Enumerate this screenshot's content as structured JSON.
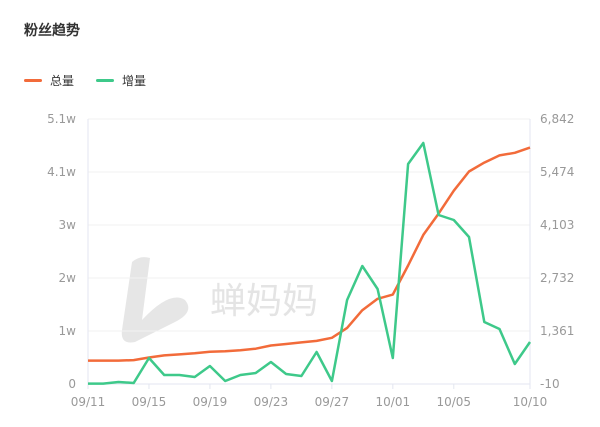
{
  "title": "粉丝趋势",
  "watermark": "蝉妈妈",
  "chart_data": {
    "type": "line",
    "title": "粉丝趋势",
    "categories": [
      "09/11",
      "09/12",
      "09/13",
      "09/14",
      "09/15",
      "09/16",
      "09/17",
      "09/18",
      "09/19",
      "09/20",
      "09/21",
      "09/22",
      "09/23",
      "09/24",
      "09/25",
      "09/26",
      "09/27",
      "09/28",
      "09/29",
      "09/30",
      "10/01",
      "10/02",
      "10/03",
      "10/04",
      "10/05",
      "10/06",
      "10/07",
      "10/08",
      "10/09",
      "10/10"
    ],
    "x_tick_labels": [
      "09/11",
      "09/15",
      "09/19",
      "09/23",
      "09/27",
      "10/01",
      "10/05",
      "10/10"
    ],
    "left_axis": {
      "ticks": [
        "0",
        "1w",
        "2w",
        "3w",
        "4.1w",
        "5.1w"
      ],
      "range": [
        0,
        51000
      ]
    },
    "right_axis": {
      "ticks": [
        "-10",
        "1,361",
        "2,732",
        "4,103",
        "5,474",
        "6,842"
      ],
      "range": [
        -10,
        6842
      ]
    },
    "grid": true,
    "legend_position": "top-left",
    "series": [
      {
        "name": "总量",
        "axis": "left",
        "color": "#f26b3a",
        "values": [
          4500,
          4500,
          4500,
          4600,
          5100,
          5500,
          5700,
          5900,
          6200,
          6300,
          6500,
          6800,
          7400,
          7700,
          8000,
          8300,
          8900,
          10800,
          14200,
          16400,
          17200,
          22800,
          28700,
          32800,
          37200,
          40900,
          42600,
          44000,
          44500,
          45500
        ]
      },
      {
        "name": "增量",
        "axis": "right",
        "color": "#3ec98a",
        "values": [
          0,
          0,
          42,
          16,
          662,
          223,
          223,
          171,
          455,
          68,
          223,
          275,
          559,
          249,
          197,
          818,
          68,
          2162,
          3041,
          2447,
          662,
          5679,
          6222,
          4360,
          4231,
          3791,
          1593,
          1412,
          507,
          1076
        ]
      }
    ]
  }
}
